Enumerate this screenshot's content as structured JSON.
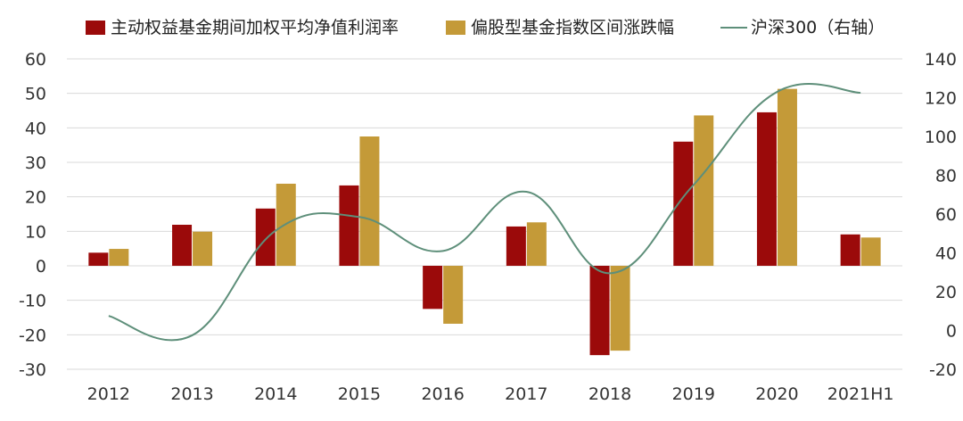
{
  "chart_data": {
    "type": "bar",
    "categories": [
      "2012",
      "2013",
      "2014",
      "2015",
      "2016",
      "2017",
      "2018",
      "2019",
      "2020",
      "2021H1"
    ],
    "series": [
      {
        "name": "主动权益基金期间加权平均净值利润率",
        "kind": "bar",
        "axis": "left",
        "color": "#9b0a0a",
        "values": [
          3.8,
          11.9,
          16.6,
          23.3,
          -12.5,
          11.4,
          -25.9,
          36.0,
          44.5,
          9.1
        ]
      },
      {
        "name": "偏股型基金指数区间涨跌幅",
        "kind": "bar",
        "axis": "left",
        "color": "#c49a38",
        "values": [
          4.9,
          9.9,
          23.8,
          37.5,
          -16.8,
          12.6,
          -24.6,
          43.6,
          51.3,
          8.2
        ]
      },
      {
        "name": "沪深300（右轴）",
        "kind": "line",
        "axis": "right",
        "color": "#5e8f7a",
        "values": [
          7.5,
          -2.5,
          51.5,
          58.5,
          41.0,
          71.5,
          29.5,
          75.0,
          123.0,
          122.5
        ]
      }
    ],
    "y_left": {
      "ticks": [
        "60",
        "50",
        "40",
        "30",
        "20",
        "10",
        "0",
        "-10",
        "-20",
        "-30"
      ],
      "min": -30,
      "max": 60
    },
    "y_right": {
      "ticks": [
        "140",
        "120",
        "100",
        "80",
        "60",
        "40",
        "20",
        "0",
        "-20"
      ],
      "min": -20,
      "max": 140
    },
    "grid": true,
    "legend_position": "top"
  }
}
